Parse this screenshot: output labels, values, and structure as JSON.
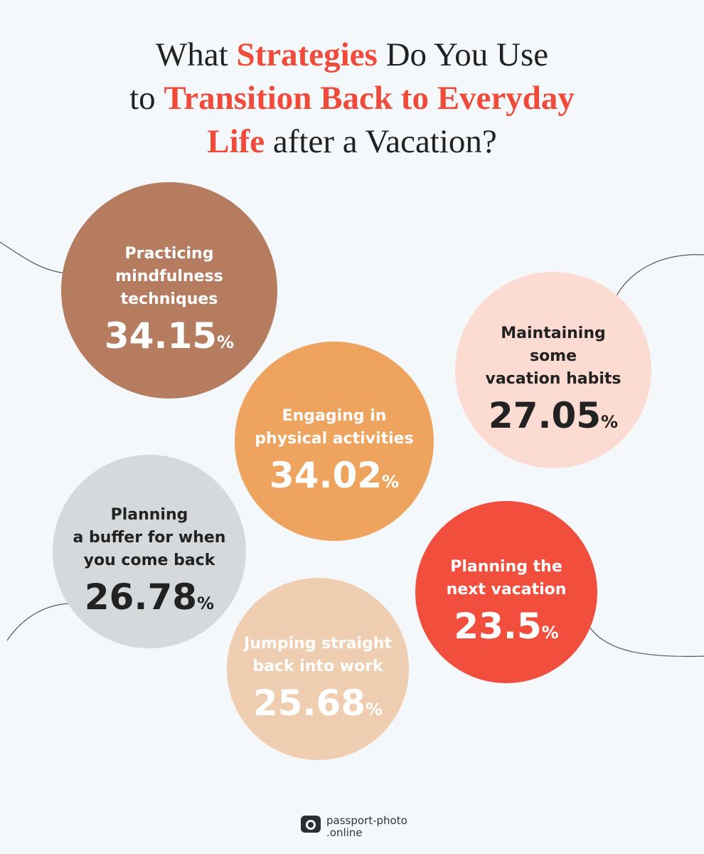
{
  "title": [
    [
      {
        "text": "What ",
        "accent": false
      },
      {
        "text": "Strategies",
        "accent": true
      },
      {
        "text": " Do You Use",
        "accent": false
      }
    ],
    [
      {
        "text": "to ",
        "accent": false
      },
      {
        "text": "Transition Back to Everyday",
        "accent": true
      }
    ],
    [
      {
        "text": "Life",
        "accent": true
      },
      {
        "text": " after a Vacation?",
        "accent": false
      }
    ]
  ],
  "bubbles": [
    {
      "label": [
        "Practicing",
        "mindfulness",
        "techniques"
      ],
      "value": 34.15,
      "unit": "%",
      "color": "#b57c60",
      "text_color": "#ffffff"
    },
    {
      "label": [
        "Engaging in",
        "physical activities"
      ],
      "value": 34.02,
      "unit": "%",
      "color": "#eea35e",
      "text_color": "#ffffff"
    },
    {
      "label": [
        "Maintaining",
        "some",
        "vacation habits"
      ],
      "value": 27.05,
      "unit": "%",
      "color": "#fcdcd2",
      "text_color": "#222222"
    },
    {
      "label": [
        "Planning",
        "a buffer for when",
        "you come back"
      ],
      "value": 26.78,
      "unit": "%",
      "color": "#d5d9dc",
      "text_color": "#222222"
    },
    {
      "label": [
        "Planning the",
        "next vacation"
      ],
      "value": 23.5,
      "unit": "%",
      "color": "#f24e3e",
      "text_color": "#ffffff"
    },
    {
      "label": [
        "Jumping straight",
        "back into work"
      ],
      "value": 25.68,
      "unit": "%",
      "color": "#efcdb0",
      "text_color": "#ffffff"
    }
  ],
  "logo": {
    "line1": "passport-photo",
    "line2": ".online"
  }
}
